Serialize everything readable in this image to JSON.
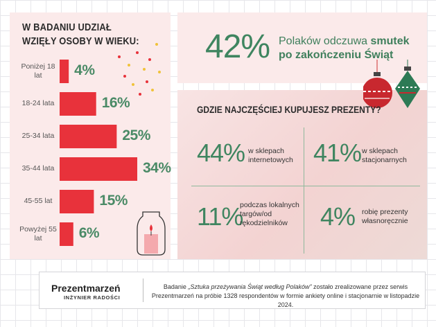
{
  "chart_data": {
    "type": "bar",
    "orientation": "horizontal",
    "title": "W BADANIU UDZIAŁ WZIĘŁY OSOBY W WIEKU:",
    "categories": [
      "Poniżej 18 lat",
      "18-24 lata",
      "25-34 lata",
      "35-44 lata",
      "45-55 lat",
      "Powyżej 55 lat"
    ],
    "values": [
      4,
      16,
      25,
      34,
      15,
      6
    ],
    "value_labels": [
      "4%",
      "16%",
      "25%",
      "34%",
      "15%",
      "6%"
    ],
    "bar_color": "#e8323b"
  },
  "hero": {
    "percent": "42%",
    "text_pre": "Polaków odczuwa ",
    "text_bold": "smutek po zakończeniu Świąt"
  },
  "question": "GDZIE NAJCZĘŚCIEJ KUPUJESZ PREZENTY?",
  "stats": [
    {
      "pct": "44%",
      "label": "w sklepach internetowych"
    },
    {
      "pct": "41%",
      "label": "w sklepach stacjonarnych"
    },
    {
      "pct": "11%",
      "label": "podczas lokalnych targów/od rękodzielników"
    },
    {
      "pct": "4%",
      "label": "robię prezenty własnoręcznie"
    }
  ],
  "footer": {
    "brand": "Prezentmarzeń",
    "brand_sub": "INŻYNIER RADOŚCI",
    "text_a": "Badanie ",
    "text_em": "„Sztuka przeżywania Świąt według Polaków”",
    "text_b": " zostało zrealizowane przez serwis Prezentmarzeń na próbie 1328 respondentów w formie ankiety online i stacjonarnie w listopadzie 2024."
  },
  "colors": {
    "accent_green": "#3f8560",
    "accent_red": "#e8323b",
    "panel_pink": "#fbeaea"
  }
}
